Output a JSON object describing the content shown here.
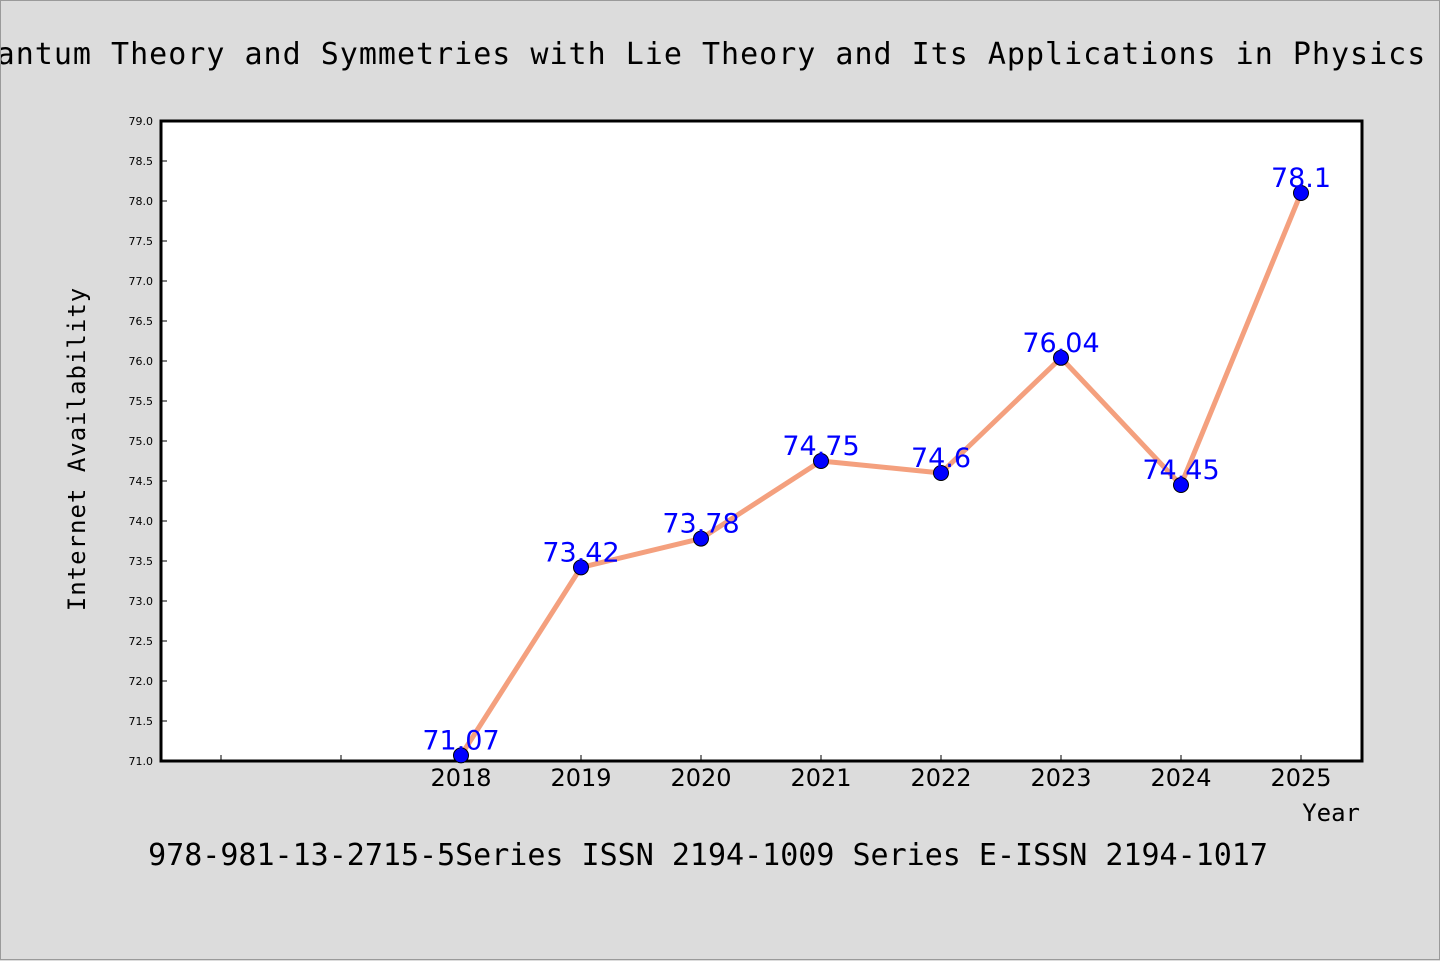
{
  "chart_data": {
    "type": "line",
    "title": "Quantum Theory and Symmetries with Lie Theory and Its Applications in Physics Vo",
    "footer": "978-981-13-2715-5Series ISSN 2194-1009 Series E-ISSN 2194-1017",
    "xlabel": "Year",
    "ylabel": "Internet Availability",
    "x": [
      "2018",
      "2019",
      "2020",
      "2021",
      "2022",
      "2023",
      "2024",
      "2025"
    ],
    "values": [
      71.07,
      73.42,
      73.78,
      74.75,
      74.6,
      76.04,
      74.45,
      78.1
    ],
    "data_labels": [
      "71.07",
      "73.42",
      "73.78",
      "74.75",
      "74.6",
      "76.04",
      "74.45",
      "78.1"
    ],
    "ylim": [
      71.0,
      79.0
    ],
    "yticks": [
      "71.0",
      "71.5",
      "72.0",
      "72.5",
      "73.0",
      "73.5",
      "74.0",
      "74.5",
      "75.0",
      "75.5",
      "76.0",
      "76.5",
      "77.0",
      "77.5",
      "78.0",
      "78.5",
      "79.0"
    ],
    "grid": false,
    "legend": "none",
    "colors": {
      "line": "#f4a07e",
      "marker": "#0000ff",
      "data_label": "#0000ff",
      "plot_background": "#ffffff",
      "page_background": "#dcdcdc"
    }
  }
}
